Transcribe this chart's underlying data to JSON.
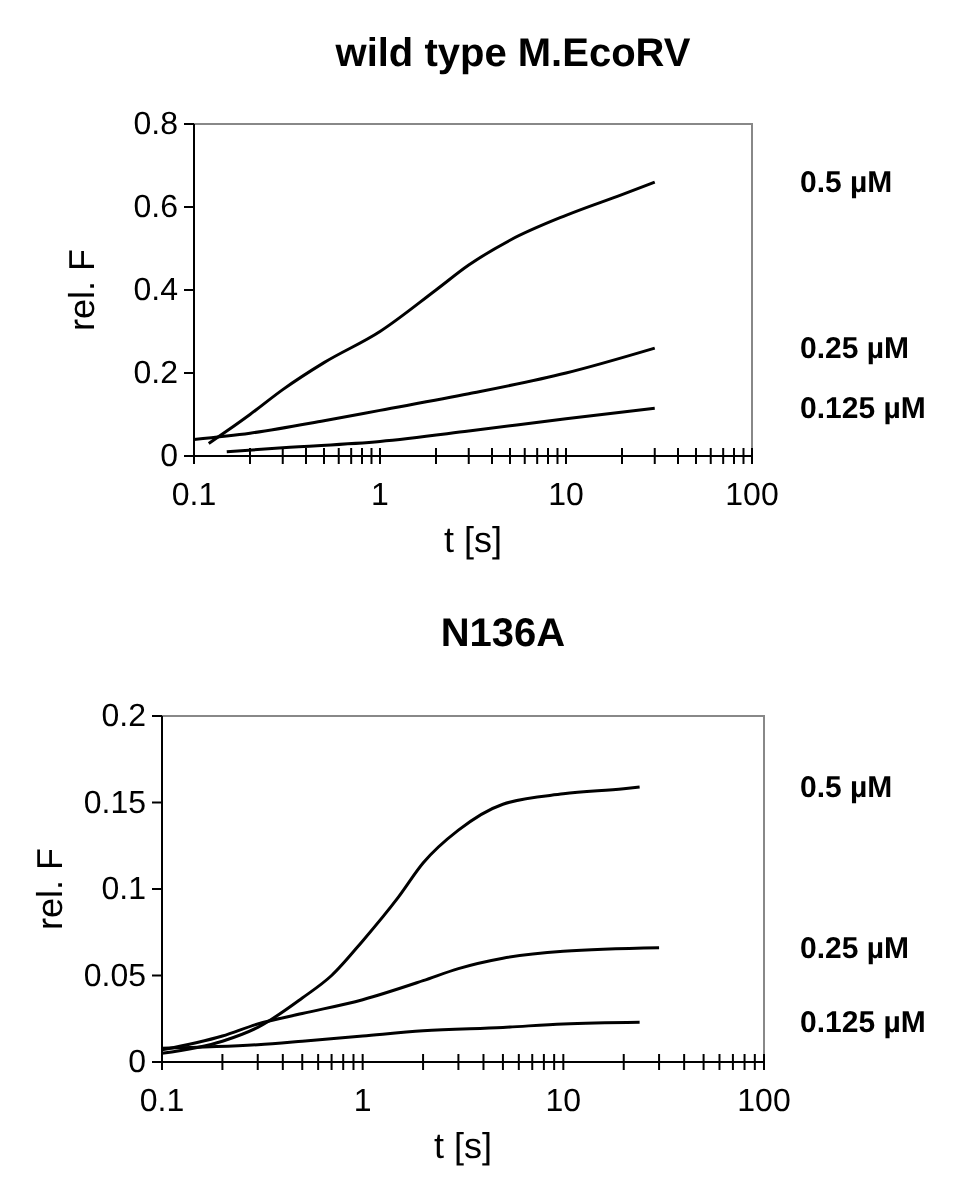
{
  "chart_data": [
    {
      "type": "line",
      "title": "wild type M.EcoRV",
      "xlabel": "t [s]",
      "ylabel": "rel. F",
      "log": "x",
      "grid": false,
      "legend": false,
      "marker": "none",
      "line_style": "solid",
      "xlim": [
        0.1,
        100
      ],
      "xticks": [
        0.1,
        {
          "value": 0.2,
          "label": null
        },
        {
          "value": 0.3,
          "label": null
        },
        {
          "value": 0.4,
          "label": null
        },
        {
          "value": 0.5,
          "label": null
        },
        {
          "value": 0.6,
          "label": null
        },
        {
          "value": 0.7,
          "label": null
        },
        {
          "value": 0.8,
          "label": null
        },
        {
          "value": 0.9,
          "label": null
        },
        1,
        {
          "value": 2,
          "label": null
        },
        {
          "value": 3,
          "label": null
        },
        {
          "value": 4,
          "label": null
        },
        {
          "value": 5,
          "label": null
        },
        {
          "value": 6,
          "label": null
        },
        {
          "value": 7,
          "label": null
        },
        {
          "value": 8,
          "label": null
        },
        {
          "value": 9,
          "label": null
        },
        10,
        {
          "value": 20,
          "label": null
        },
        {
          "value": 30,
          "label": null
        },
        {
          "value": 40,
          "label": null
        },
        {
          "value": 50,
          "label": null
        },
        {
          "value": 60,
          "label": null
        },
        {
          "value": 70,
          "label": null
        },
        {
          "value": 80,
          "label": null
        },
        {
          "value": 90,
          "label": null
        },
        100
      ],
      "ylim": [
        0,
        0.8
      ],
      "yticks": [
        0,
        0.2,
        0.4,
        0.6,
        0.8
      ],
      "series": [
        {
          "name": "0.5 µM",
          "color": "#000000",
          "x": [
            0.12,
            0.15,
            0.2,
            0.3,
            0.5,
            1,
            2,
            3,
            5,
            10,
            20,
            30
          ],
          "values": [
            0.03,
            0.06,
            0.1,
            0.16,
            0.225,
            0.3,
            0.4,
            0.46,
            0.52,
            0.58,
            0.63,
            0.66
          ]
        },
        {
          "name": "0.25 µM",
          "color": "#000000",
          "x": [
            0.1,
            0.2,
            0.5,
            1,
            3,
            10,
            30
          ],
          "values": [
            0.04,
            0.055,
            0.085,
            0.11,
            0.15,
            0.2,
            0.26
          ]
        },
        {
          "name": "0.125 µM",
          "color": "#000000",
          "x": [
            0.15,
            0.3,
            1,
            3,
            10,
            30
          ],
          "values": [
            0.01,
            0.02,
            0.035,
            0.06,
            0.09,
            0.115
          ]
        }
      ]
    },
    {
      "type": "line",
      "title": "N136A",
      "xlabel": "t [s]",
      "ylabel": "rel. F",
      "log": "x",
      "grid": false,
      "legend": false,
      "marker": "none",
      "line_style": "solid",
      "xlim": [
        0.1,
        100
      ],
      "xticks": [
        0.1,
        {
          "value": 0.2,
          "label": null
        },
        {
          "value": 0.3,
          "label": null
        },
        {
          "value": 0.4,
          "label": null
        },
        {
          "value": 0.5,
          "label": null
        },
        {
          "value": 0.6,
          "label": null
        },
        {
          "value": 0.7,
          "label": null
        },
        {
          "value": 0.8,
          "label": null
        },
        {
          "value": 0.9,
          "label": null
        },
        1,
        {
          "value": 2,
          "label": null
        },
        {
          "value": 3,
          "label": null
        },
        {
          "value": 4,
          "label": null
        },
        {
          "value": 5,
          "label": null
        },
        {
          "value": 6,
          "label": null
        },
        {
          "value": 7,
          "label": null
        },
        {
          "value": 8,
          "label": null
        },
        {
          "value": 9,
          "label": null
        },
        10,
        {
          "value": 20,
          "label": null
        },
        {
          "value": 30,
          "label": null
        },
        {
          "value": 40,
          "label": null
        },
        {
          "value": 50,
          "label": null
        },
        {
          "value": 60,
          "label": null
        },
        {
          "value": 70,
          "label": null
        },
        {
          "value": 80,
          "label": null
        },
        {
          "value": 90,
          "label": null
        },
        100
      ],
      "ylim": [
        0,
        0.2
      ],
      "yticks": [
        0,
        0.05,
        0.1,
        0.15,
        0.2
      ],
      "series": [
        {
          "name": "0.5 µM",
          "color": "#000000",
          "x": [
            0.1,
            0.2,
            0.3,
            0.5,
            0.7,
            1,
            1.5,
            2,
            3,
            5,
            10,
            20,
            24
          ],
          "values": [
            0.005,
            0.012,
            0.02,
            0.037,
            0.05,
            0.07,
            0.095,
            0.115,
            0.134,
            0.149,
            0.155,
            0.158,
            0.159
          ]
        },
        {
          "name": "0.25 µM",
          "color": "#000000",
          "x": [
            0.1,
            0.2,
            0.3,
            0.5,
            1,
            2,
            3,
            5,
            10,
            30
          ],
          "values": [
            0.007,
            0.015,
            0.022,
            0.028,
            0.036,
            0.047,
            0.054,
            0.06,
            0.064,
            0.066
          ]
        },
        {
          "name": "0.125 µM",
          "color": "#000000",
          "x": [
            0.1,
            0.3,
            0.5,
            1,
            2,
            5,
            10,
            24
          ],
          "values": [
            0.008,
            0.01,
            0.012,
            0.015,
            0.018,
            0.02,
            0.022,
            0.023
          ]
        }
      ]
    }
  ]
}
